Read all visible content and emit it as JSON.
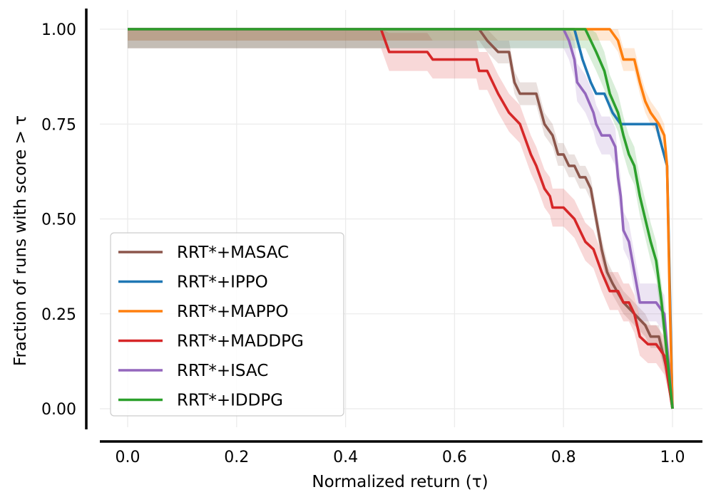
{
  "chart_data": {
    "type": "line",
    "xlabel": "Normalized return (τ)",
    "ylabel": "Fraction of runs with score > τ",
    "xlim": [
      -0.05,
      1.05
    ],
    "ylim": [
      -0.05,
      1.05
    ],
    "xticks": [
      0.0,
      0.2,
      0.4,
      0.6,
      0.8,
      1.0
    ],
    "xtick_labels": [
      "0.0",
      "0.2",
      "0.4",
      "0.6",
      "0.8",
      "1.0"
    ],
    "yticks": [
      0.0,
      0.25,
      0.5,
      0.75,
      1.0
    ],
    "ytick_labels": [
      "0.00",
      "0.25",
      "0.50",
      "0.75",
      "1.00"
    ],
    "grid": true,
    "legend_position": "lower-left",
    "series": [
      {
        "name": "RRT*+MASAC",
        "color": "#8c564b",
        "band": 0.03,
        "x": [
          0.0,
          0.645,
          0.66,
          0.68,
          0.7,
          0.71,
          0.72,
          0.75,
          0.765,
          0.78,
          0.79,
          0.8,
          0.81,
          0.82,
          0.83,
          0.84,
          0.85,
          0.86,
          0.87,
          0.88,
          0.89,
          0.91,
          0.93,
          0.95,
          0.96,
          0.975,
          0.99,
          1.0
        ],
        "y": [
          1.0,
          1.0,
          0.97,
          0.94,
          0.94,
          0.86,
          0.83,
          0.83,
          0.75,
          0.72,
          0.67,
          0.67,
          0.64,
          0.64,
          0.61,
          0.61,
          0.58,
          0.5,
          0.42,
          0.36,
          0.33,
          0.28,
          0.25,
          0.22,
          0.19,
          0.19,
          0.1,
          0.0
        ]
      },
      {
        "name": "RRT*+IPPO",
        "color": "#1f77b4",
        "band": 0.0,
        "x": [
          0.0,
          0.82,
          0.835,
          0.85,
          0.86,
          0.875,
          0.89,
          0.905,
          0.97,
          0.975,
          0.99,
          1.0
        ],
        "y": [
          1.0,
          1.0,
          0.92,
          0.86,
          0.83,
          0.83,
          0.78,
          0.75,
          0.75,
          0.72,
          0.64,
          0.0
        ]
      },
      {
        "name": "RRT*+MAPPO",
        "color": "#ff7f0e",
        "band": 0.03,
        "x": [
          0.0,
          0.885,
          0.9,
          0.91,
          0.93,
          0.94,
          0.95,
          0.96,
          0.975,
          0.985,
          0.99,
          0.995,
          1.0
        ],
        "y": [
          1.0,
          1.0,
          0.97,
          0.92,
          0.92,
          0.86,
          0.81,
          0.78,
          0.75,
          0.72,
          0.64,
          0.28,
          0.0
        ]
      },
      {
        "name": "RRT*+MADDPG",
        "color": "#d62728",
        "band": 0.05,
        "x": [
          0.0,
          0.465,
          0.48,
          0.55,
          0.56,
          0.64,
          0.645,
          0.66,
          0.68,
          0.7,
          0.72,
          0.74,
          0.75,
          0.765,
          0.775,
          0.78,
          0.8,
          0.82,
          0.83,
          0.84,
          0.855,
          0.87,
          0.885,
          0.9,
          0.91,
          0.92,
          0.93,
          0.94,
          0.955,
          0.97,
          0.985,
          1.0
        ],
        "y": [
          1.0,
          1.0,
          0.94,
          0.94,
          0.92,
          0.92,
          0.89,
          0.89,
          0.83,
          0.78,
          0.75,
          0.67,
          0.64,
          0.58,
          0.56,
          0.53,
          0.53,
          0.5,
          0.47,
          0.44,
          0.42,
          0.36,
          0.31,
          0.31,
          0.28,
          0.28,
          0.25,
          0.19,
          0.17,
          0.17,
          0.14,
          0.0
        ]
      },
      {
        "name": "RRT*+ISAC",
        "color": "#9467bd",
        "band": 0.05,
        "x": [
          0.0,
          0.8,
          0.81,
          0.82,
          0.825,
          0.84,
          0.855,
          0.86,
          0.87,
          0.885,
          0.895,
          0.9,
          0.905,
          0.91,
          0.92,
          0.93,
          0.94,
          0.97,
          0.985,
          1.0
        ],
        "y": [
          1.0,
          1.0,
          0.97,
          0.92,
          0.86,
          0.83,
          0.78,
          0.75,
          0.72,
          0.72,
          0.69,
          0.61,
          0.56,
          0.47,
          0.44,
          0.36,
          0.28,
          0.28,
          0.25,
          0.0
        ]
      },
      {
        "name": "RRT*+IDDPG",
        "color": "#2ca02c",
        "band": 0.05,
        "x": [
          0.0,
          0.84,
          0.85,
          0.86,
          0.875,
          0.885,
          0.9,
          0.91,
          0.92,
          0.93,
          0.94,
          0.95,
          0.96,
          0.97,
          0.98,
          0.99,
          1.0
        ],
        "y": [
          1.0,
          1.0,
          0.97,
          0.94,
          0.89,
          0.83,
          0.78,
          0.72,
          0.67,
          0.64,
          0.56,
          0.5,
          0.44,
          0.39,
          0.28,
          0.14,
          0.0
        ]
      }
    ]
  }
}
